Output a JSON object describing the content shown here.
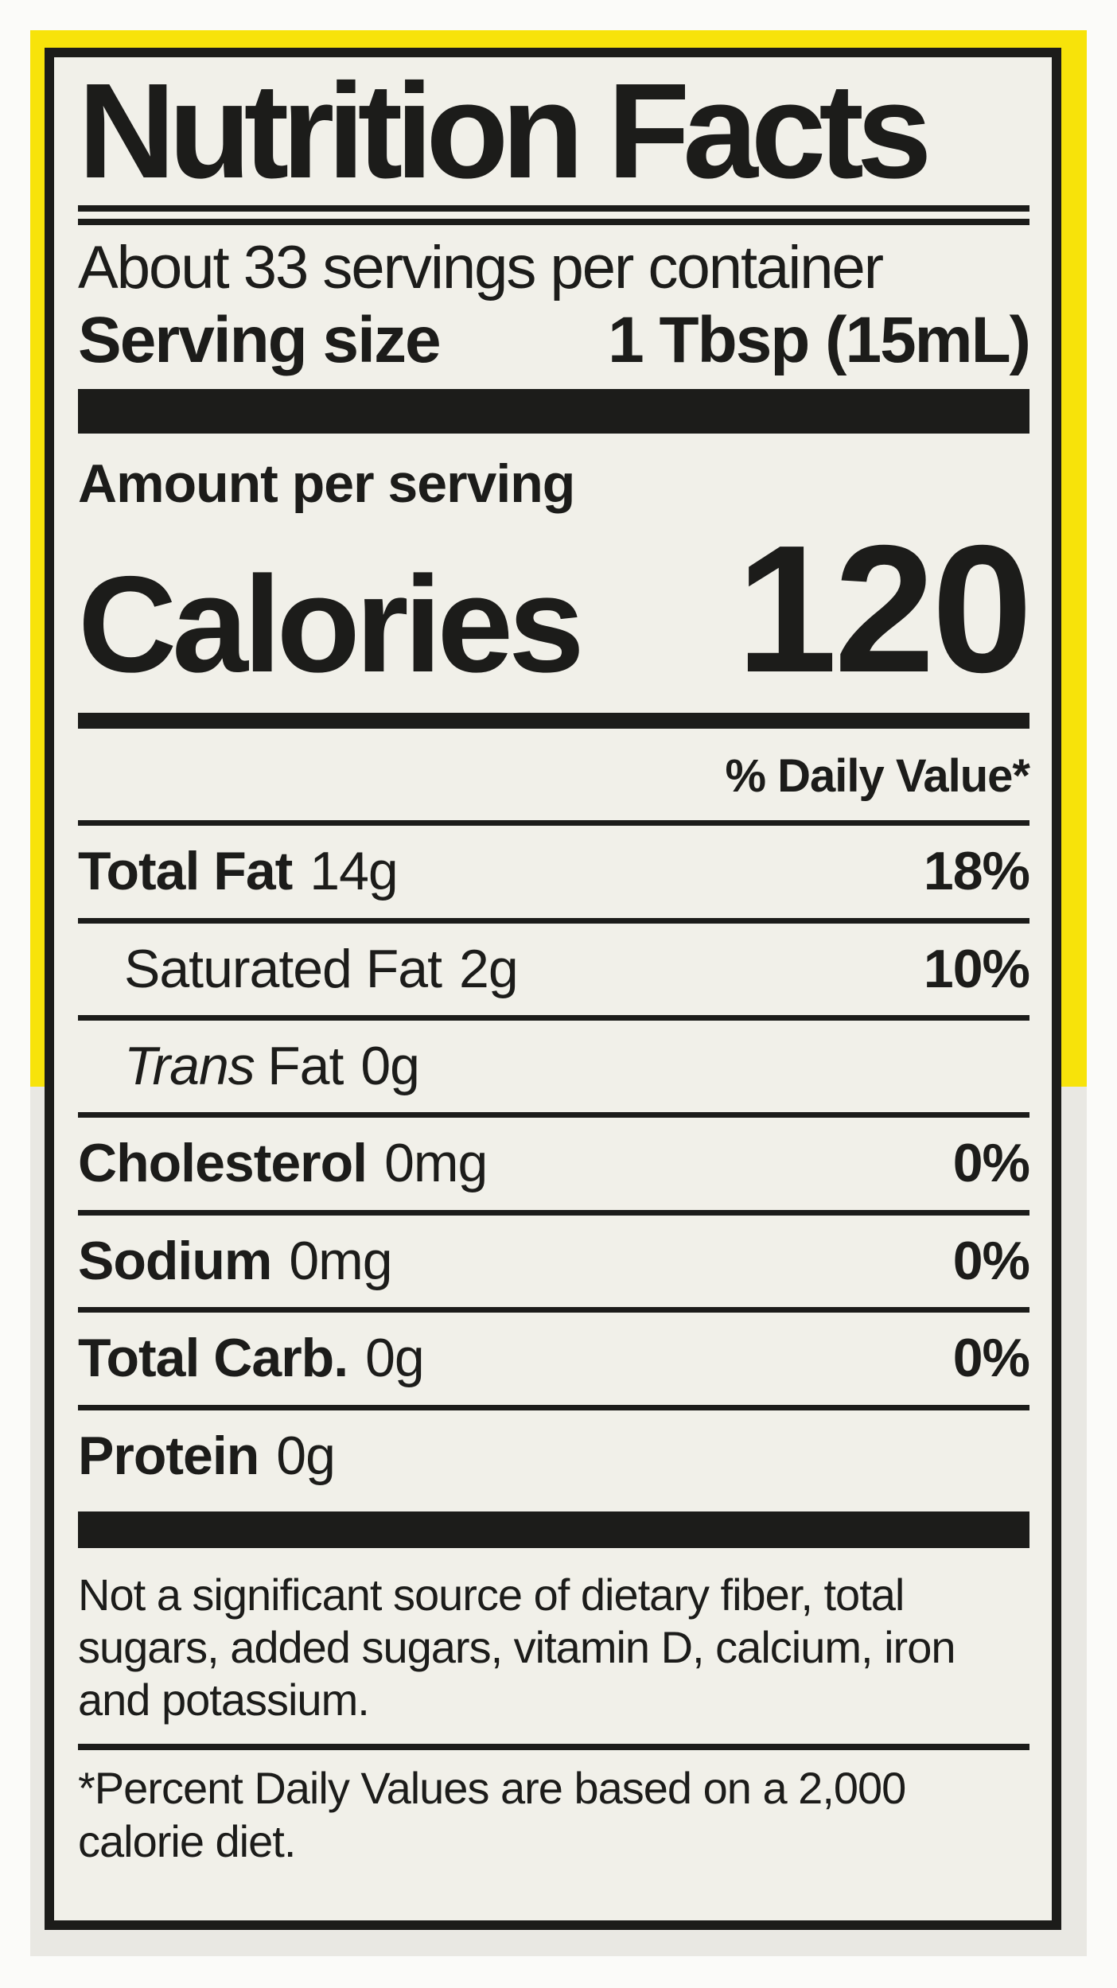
{
  "colors": {
    "yellow": "#f7e30a",
    "cream": "#f1f0e9",
    "graybg": "#e9e8e3",
    "paper": "#fbfbf9",
    "ink": "#1c1c1a"
  },
  "label": {
    "title": "Nutrition Facts",
    "servings_per_container": "About 33 servings per container",
    "serving_size": {
      "label": "Serving size",
      "value": "1 Tbsp (15mL)"
    },
    "amount_per_serving": "Amount per serving",
    "calories": {
      "label": "Calories",
      "value": "120"
    },
    "daily_value_header": "% Daily Value*",
    "rows": [
      {
        "name": "Total Fat",
        "amount": "14g",
        "dv": "18%"
      },
      {
        "name": "Saturated Fat",
        "amount": "2g",
        "dv": "10%"
      },
      {
        "name_italic": "Trans",
        "name_rest": "Fat",
        "amount": "0g",
        "dv": ""
      },
      {
        "name": "Cholesterol",
        "amount": "0mg",
        "dv": "0%"
      },
      {
        "name": "Sodium",
        "amount": "0mg",
        "dv": "0%"
      },
      {
        "name": "Total Carb.",
        "amount": "0g",
        "dv": "0%"
      },
      {
        "name": "Protein",
        "amount": "0g",
        "dv": ""
      }
    ],
    "disclaimer": "Not a significant source of dietary fiber, total sugars, added sugars, vitamin D, calcium, iron and potassium.",
    "footnote": "*Percent Daily Values are based on a 2,000 calorie diet."
  }
}
